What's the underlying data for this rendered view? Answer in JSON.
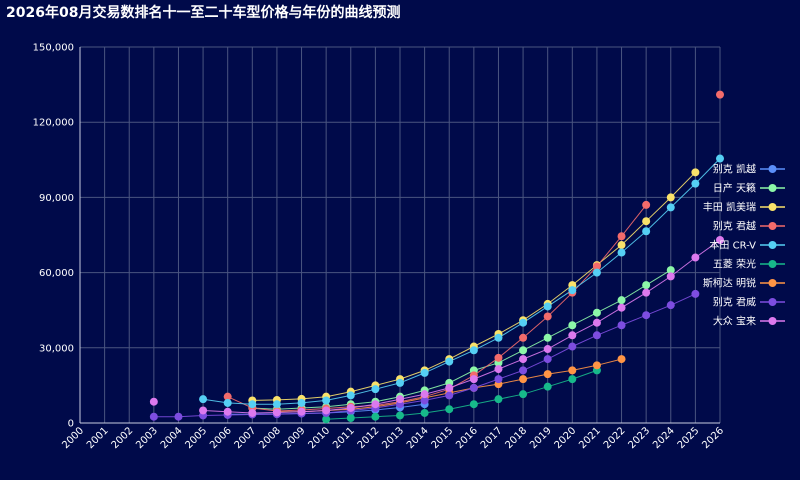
{
  "chart_data": {
    "type": "line",
    "title": "2026年08月交易数排名十一至二十车型价格与年份的曲线预测",
    "xlabel": "",
    "ylabel": "",
    "x": [
      2000,
      2001,
      2002,
      2003,
      2004,
      2005,
      2006,
      2007,
      2008,
      2009,
      2010,
      2011,
      2012,
      2013,
      2014,
      2015,
      2016,
      2017,
      2018,
      2019,
      2020,
      2021,
      2022,
      2023,
      2024,
      2025,
      2026
    ],
    "ylim": [
      0,
      150000
    ],
    "yticks": [
      "0",
      "30,000",
      "60,000",
      "90,000",
      "120,000",
      "150,000"
    ],
    "grid": true,
    "legend_position": "right",
    "series": [
      {
        "name": "别克 凯越",
        "color": "#5b8ff9",
        "values": [
          null,
          null,
          null,
          null,
          null,
          null,
          3500,
          3500,
          3600,
          3800,
          4000,
          4500,
          5200,
          6200,
          7500,
          null,
          null,
          null,
          null,
          null,
          null,
          null,
          null,
          null,
          null,
          null,
          null
        ]
      },
      {
        "name": "日产 天籁",
        "color": "#8cf7a8",
        "values": [
          null,
          null,
          null,
          null,
          null,
          null,
          null,
          6000,
          5500,
          6000,
          6500,
          7500,
          8500,
          10500,
          13000,
          16000,
          21000,
          24000,
          29000,
          34000,
          39000,
          44000,
          49000,
          55000,
          61000,
          null,
          null
        ]
      },
      {
        "name": "丰田 凯美瑞",
        "color": "#fae26a",
        "values": [
          null,
          null,
          null,
          null,
          null,
          null,
          null,
          9000,
          9200,
          9600,
          10500,
          12500,
          15000,
          17500,
          21000,
          25500,
          30500,
          35500,
          41000,
          47500,
          55000,
          63000,
          71000,
          80500,
          90000,
          100000,
          null
        ]
      },
      {
        "name": "别克 君越",
        "color": "#f36b6b",
        "values": [
          null,
          null,
          null,
          null,
          null,
          null,
          10500,
          6000,
          4800,
          5200,
          5800,
          6500,
          7000,
          8500,
          10500,
          13500,
          19000,
          26000,
          34000,
          42500,
          52000,
          62500,
          74500,
          87000,
          null,
          null,
          131000
        ]
      },
      {
        "name": "本田 CR-V",
        "color": "#55cff4",
        "values": [
          null,
          null,
          null,
          null,
          null,
          9500,
          8000,
          7500,
          7500,
          8000,
          9000,
          11000,
          13500,
          16000,
          20000,
          24500,
          29000,
          34000,
          40000,
          46500,
          53000,
          60000,
          68000,
          76500,
          86000,
          95500,
          105500
        ]
      },
      {
        "name": "五菱 荣光",
        "color": "#17b98a",
        "values": [
          null,
          null,
          null,
          null,
          null,
          null,
          null,
          null,
          null,
          null,
          1500,
          2000,
          2500,
          3000,
          4000,
          5500,
          7500,
          9500,
          11500,
          14500,
          17500,
          21000,
          null,
          null,
          null,
          null,
          null
        ]
      },
      {
        "name": "斯柯达 明锐",
        "color": "#ff9445",
        "values": [
          null,
          null,
          null,
          null,
          null,
          null,
          null,
          null,
          4500,
          4500,
          5000,
          5500,
          6500,
          8000,
          10000,
          12000,
          14000,
          15500,
          17500,
          19500,
          21000,
          23000,
          25500,
          null,
          null,
          null,
          null
        ]
      },
      {
        "name": "别克 君威",
        "color": "#7d4de0",
        "values": [
          null,
          null,
          null,
          2500,
          2500,
          3000,
          3200,
          3400,
          3500,
          3800,
          4000,
          5000,
          6000,
          7500,
          9000,
          11000,
          14000,
          17500,
          21000,
          25500,
          30500,
          35000,
          39000,
          43000,
          47000,
          51500,
          null
        ]
      },
      {
        "name": "大众 宝来",
        "color": "#dc79ee",
        "values": [
          null,
          null,
          null,
          8500,
          null,
          5000,
          4500,
          4000,
          4200,
          4500,
          5000,
          6000,
          7500,
          9500,
          11500,
          14000,
          17500,
          21500,
          25500,
          29500,
          35000,
          40000,
          46000,
          52000,
          58500,
          66000,
          73000
        ]
      }
    ]
  }
}
